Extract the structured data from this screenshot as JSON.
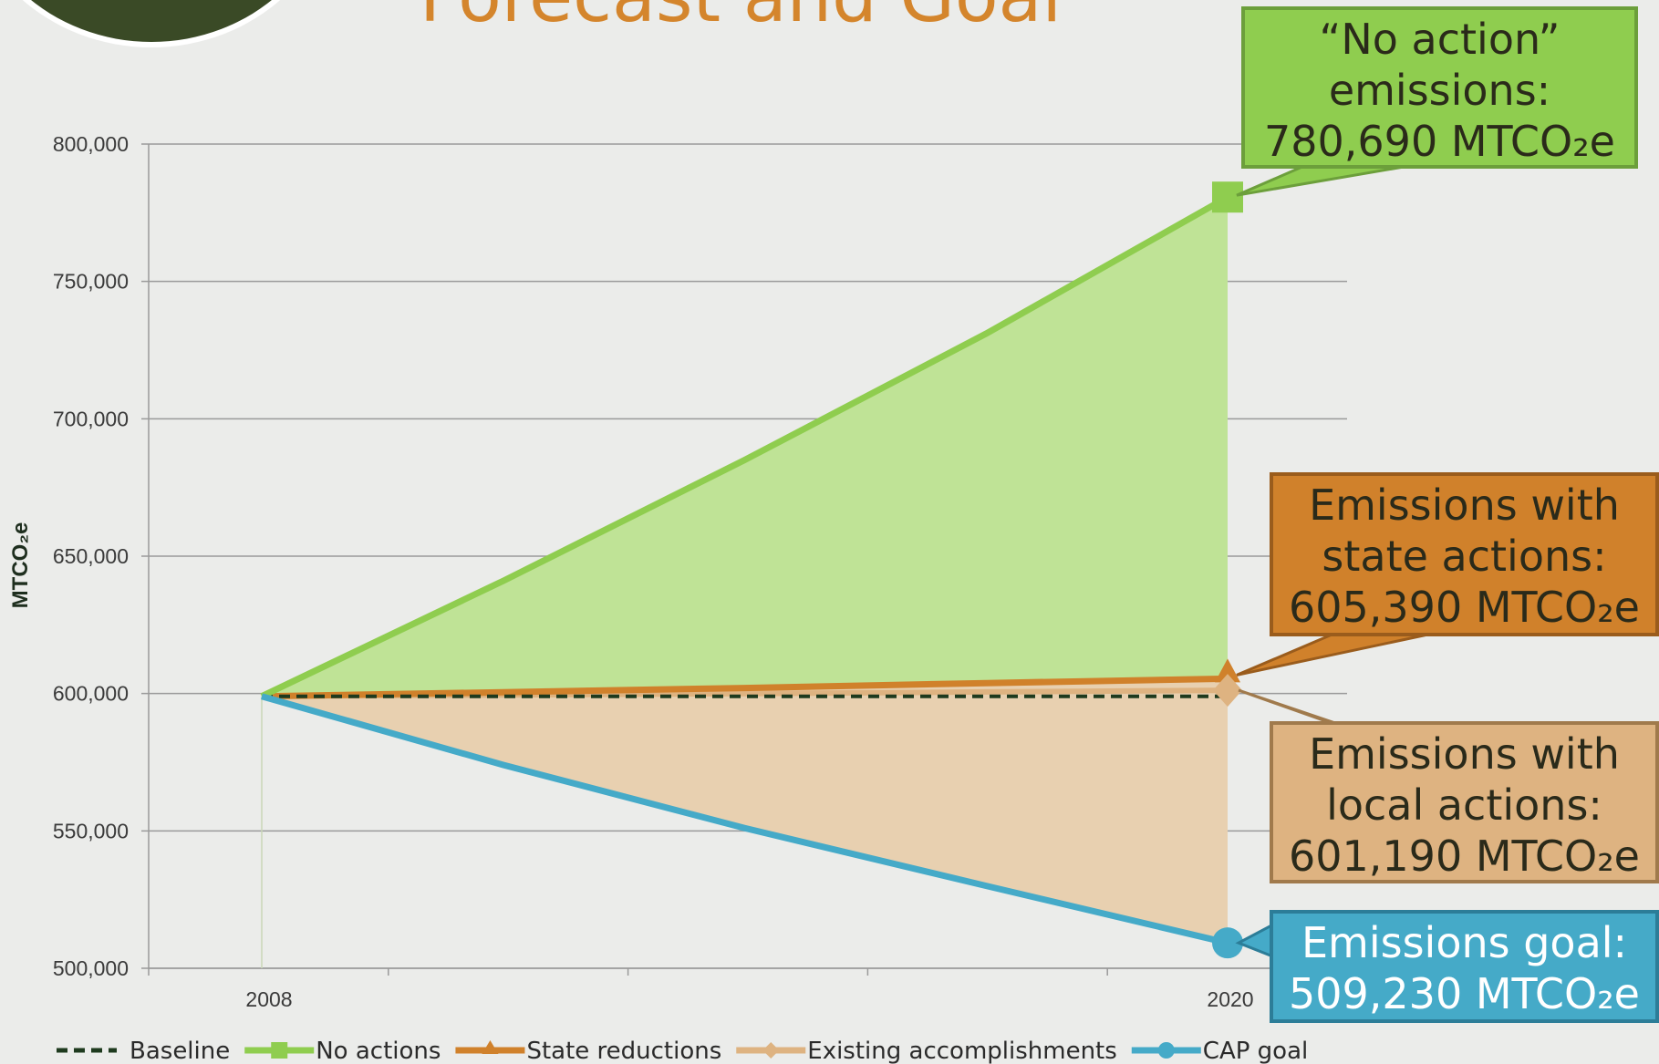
{
  "title": "Forecast and Goal",
  "colors": {
    "baseline": "#1e3a1e",
    "no_action": "#8fcd4f",
    "no_action_fill": "#bfe396",
    "state": "#d0812b",
    "existing": "#deb381",
    "existing_fill": "#e8d0b0",
    "goal": "#45aac8",
    "grid": "#9a9a9a",
    "axis_text": "#3a3a3a"
  },
  "chart_data": {
    "type": "line",
    "ylabel": "MTCO₂e",
    "ylim": [
      500000,
      800000
    ],
    "yticks": [
      "500,000",
      "550,000",
      "600,000",
      "650,000",
      "700,000",
      "750,000",
      "800,000"
    ],
    "x_tick_labels": [
      "2008",
      "2020"
    ],
    "x": [
      2008,
      2011,
      2014,
      2017,
      2020
    ],
    "series": [
      {
        "key": "baseline",
        "name": "Baseline",
        "values": [
          599000,
          599000,
          599000,
          599000,
          599000
        ]
      },
      {
        "key": "no_action",
        "name": "No actions",
        "values": [
          599000,
          641000,
          685000,
          731000,
          780690
        ]
      },
      {
        "key": "state",
        "name": "State reductions",
        "values": [
          599000,
          600500,
          602000,
          603800,
          605390
        ]
      },
      {
        "key": "existing",
        "name": "Existing accomplishments",
        "values": [
          599000,
          599500,
          600000,
          600600,
          601190
        ]
      },
      {
        "key": "goal",
        "name": "CAP goal",
        "values": [
          599000,
          574000,
          551000,
          530000,
          509230
        ]
      }
    ]
  },
  "callouts": {
    "no_action": {
      "label": "“No action”\nemissions:",
      "value": "780,690 MTCO₂e"
    },
    "state": {
      "label": "Emissions with\nstate actions:",
      "value": "605,390 MTCO₂e"
    },
    "local": {
      "label": "Emissions with\nlocal actions:",
      "value": "601,190 MTCO₂e"
    },
    "goal": {
      "label": "Emissions goal:",
      "value": "509,230 MTCO₂e"
    }
  }
}
